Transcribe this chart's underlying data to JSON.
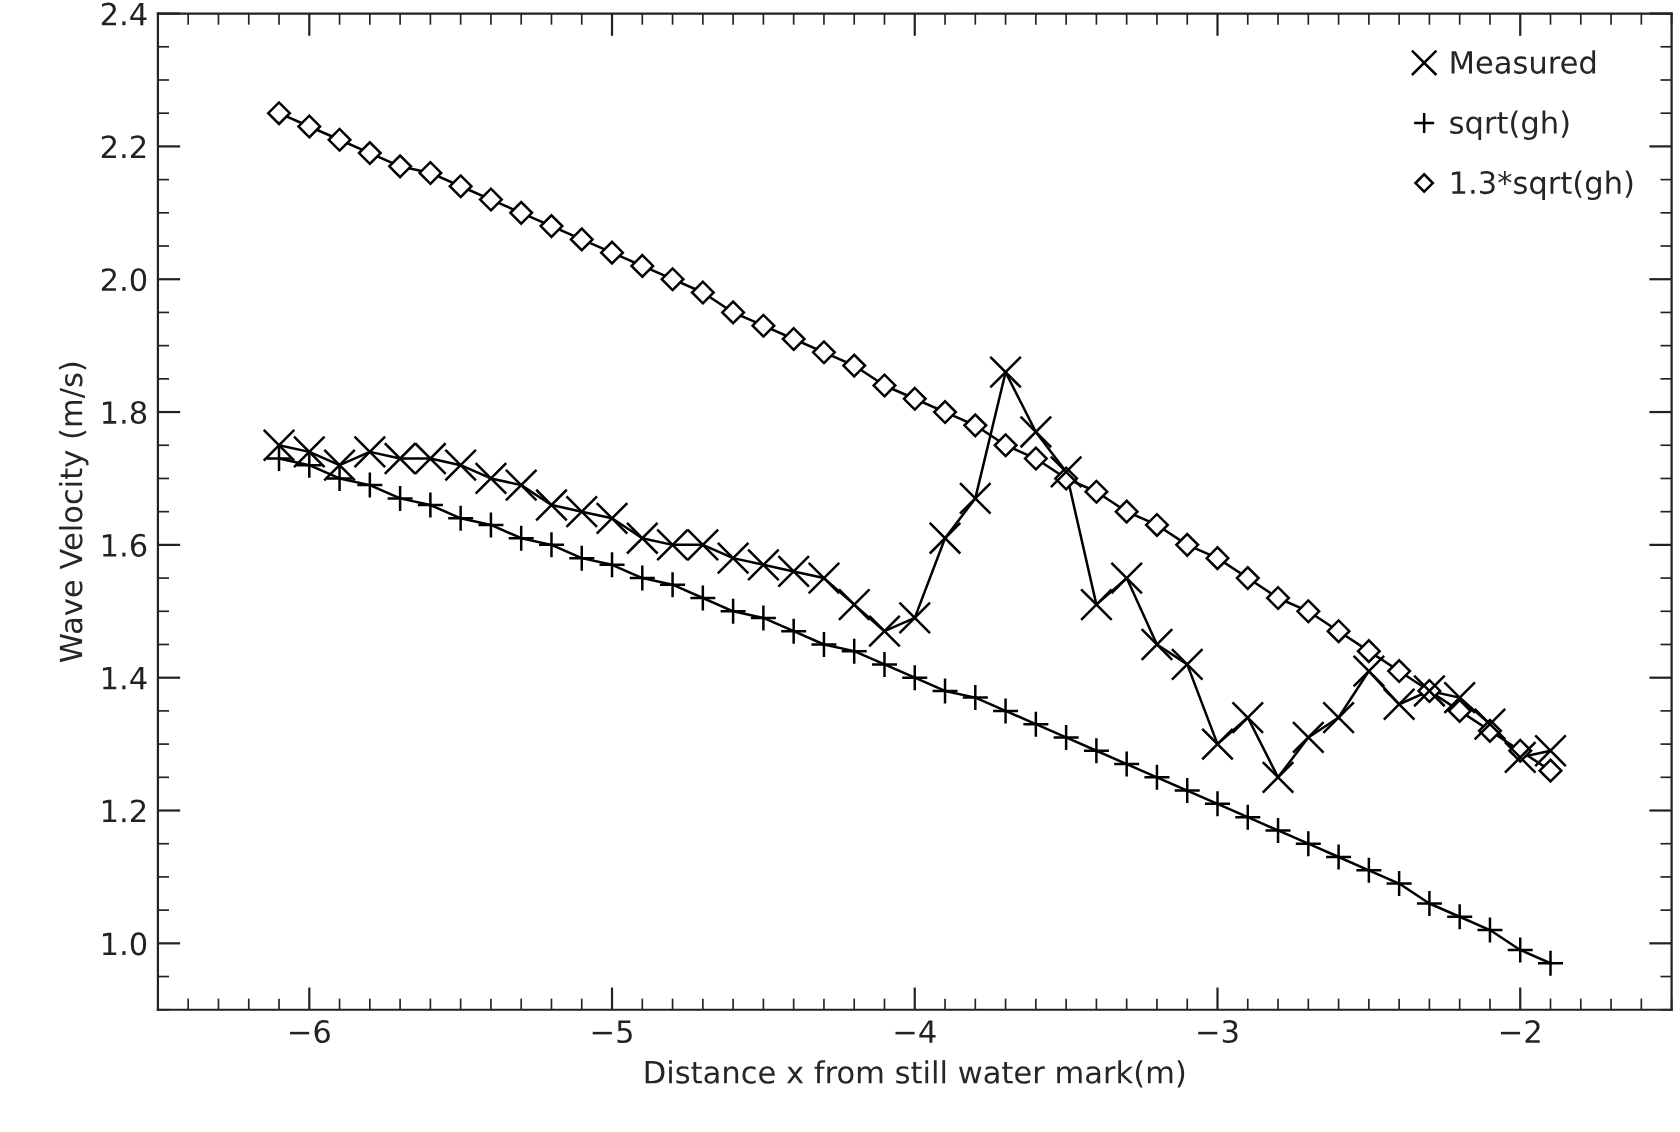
{
  "chart_data": {
    "type": "line",
    "xlabel": "Distance x from still water mark(m)",
    "ylabel": "Wave Velocity (m/s)",
    "x": [
      -6.1,
      -6.0,
      -5.9,
      -5.8,
      -5.7,
      -5.6,
      -5.5,
      -5.4,
      -5.3,
      -5.2,
      -5.1,
      -5.0,
      -4.9,
      -4.8,
      -4.7,
      -4.6,
      -4.5,
      -4.4,
      -4.3,
      -4.2,
      -4.1,
      -4.0,
      -3.9,
      -3.8,
      -3.7,
      -3.6,
      -3.5,
      -3.4,
      -3.3,
      -3.2,
      -3.1,
      -3.0,
      -2.9,
      -2.8,
      -2.7,
      -2.6,
      -2.5,
      -2.4,
      -2.3,
      -2.2,
      -2.1,
      -2.0,
      -1.9
    ],
    "series": [
      {
        "name": "Measured",
        "color": "#000000",
        "marker": "cross",
        "values": [
          1.75,
          1.74,
          1.72,
          1.74,
          1.73,
          1.73,
          1.72,
          1.7,
          1.69,
          1.66,
          1.65,
          1.64,
          1.61,
          1.6,
          1.6,
          1.58,
          1.57,
          1.56,
          1.55,
          1.51,
          1.47,
          1.49,
          1.61,
          1.67,
          1.86,
          1.77,
          1.71,
          1.51,
          1.55,
          1.45,
          1.42,
          1.3,
          1.34,
          1.25,
          1.31,
          1.34,
          1.41,
          1.36,
          1.38,
          1.37,
          1.33,
          1.28,
          1.29
        ]
      },
      {
        "name": "sqrt(gh)",
        "color": "#000000",
        "marker": "plus",
        "values": [
          1.73,
          1.72,
          1.7,
          1.69,
          1.67,
          1.66,
          1.64,
          1.63,
          1.61,
          1.6,
          1.58,
          1.57,
          1.55,
          1.54,
          1.52,
          1.5,
          1.49,
          1.47,
          1.45,
          1.44,
          1.42,
          1.4,
          1.38,
          1.37,
          1.35,
          1.33,
          1.31,
          1.29,
          1.27,
          1.25,
          1.23,
          1.21,
          1.19,
          1.17,
          1.15,
          1.13,
          1.11,
          1.09,
          1.06,
          1.04,
          1.02,
          0.99,
          0.97
        ]
      },
      {
        "name": "1.3*sqrt(gh)",
        "color": "#000000",
        "marker": "diamond",
        "values": [
          2.25,
          2.23,
          2.21,
          2.19,
          2.17,
          2.16,
          2.14,
          2.12,
          2.1,
          2.08,
          2.06,
          2.04,
          2.02,
          2.0,
          1.98,
          1.95,
          1.93,
          1.91,
          1.89,
          1.87,
          1.84,
          1.82,
          1.8,
          1.78,
          1.75,
          1.73,
          1.7,
          1.68,
          1.65,
          1.63,
          1.6,
          1.58,
          1.55,
          1.52,
          1.5,
          1.47,
          1.44,
          1.41,
          1.38,
          1.35,
          1.32,
          1.29,
          1.26
        ]
      }
    ],
    "xlim": [
      -6.5,
      -1.5
    ],
    "xticks": [
      {
        "value": -6,
        "label": "−6"
      },
      {
        "value": -5,
        "label": "−5"
      },
      {
        "value": -4,
        "label": "−4"
      },
      {
        "value": -3,
        "label": "−3"
      },
      {
        "value": -2,
        "label": "−2"
      }
    ],
    "ylim": [
      0.9,
      2.4
    ],
    "yticks": [
      {
        "value": 1.0,
        "label": "1.0"
      },
      {
        "value": 1.2,
        "label": "1.2"
      },
      {
        "value": 1.4,
        "label": "1.4"
      },
      {
        "value": 1.6,
        "label": "1.6"
      },
      {
        "value": 1.8,
        "label": "1.8"
      },
      {
        "value": 2.0,
        "label": "2.0"
      },
      {
        "value": 2.2,
        "label": "2.2"
      },
      {
        "value": 2.4,
        "label": "2.4"
      }
    ],
    "line_style": "solid",
    "grid": false,
    "legend": "top right"
  }
}
